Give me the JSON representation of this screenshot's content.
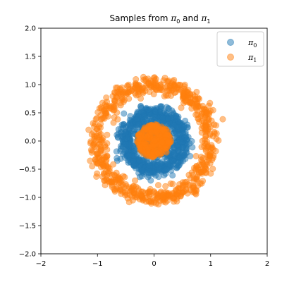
{
  "chart_data": {
    "type": "scatter",
    "title": {
      "prefix": "Samples from ",
      "symbol": "π",
      "middle": " and ",
      "sub0": "0",
      "sub1": "1"
    },
    "xlabel": "",
    "ylabel": "",
    "xlim": [
      -2,
      2
    ],
    "ylim": [
      -2,
      2
    ],
    "x_ticks": [
      -2,
      -1,
      0,
      1,
      2
    ],
    "y_ticks": [
      -2.0,
      -1.5,
      -1.0,
      -0.5,
      0.0,
      0.5,
      1.0,
      1.5,
      2.0
    ],
    "x_tick_labels": [
      "−2",
      "−1",
      "0",
      "1",
      "2"
    ],
    "y_tick_labels": [
      "−2.0",
      "−1.5",
      "−1.0",
      "−0.5",
      "0.0",
      "0.5",
      "1.0",
      "1.5",
      "2.0"
    ],
    "grid": false,
    "legend_position": "upper-right",
    "aspect": "equal",
    "series": [
      {
        "symbol": "π",
        "subscript": "0",
        "color": "#1f77b4",
        "alpha": 0.5,
        "components": [
          {
            "shape": "ring",
            "mean_radius": 0.5,
            "radius_spread": 0.08
          },
          {
            "shape": "disk",
            "radius": 0.3
          }
        ]
      },
      {
        "symbol": "π",
        "subscript": "1",
        "color": "#ff7f0e",
        "alpha": 0.5,
        "components": [
          {
            "shape": "ring",
            "mean_radius": 1.0,
            "radius_spread": 0.08
          },
          {
            "shape": "disk",
            "radius": 0.3
          }
        ]
      }
    ]
  }
}
